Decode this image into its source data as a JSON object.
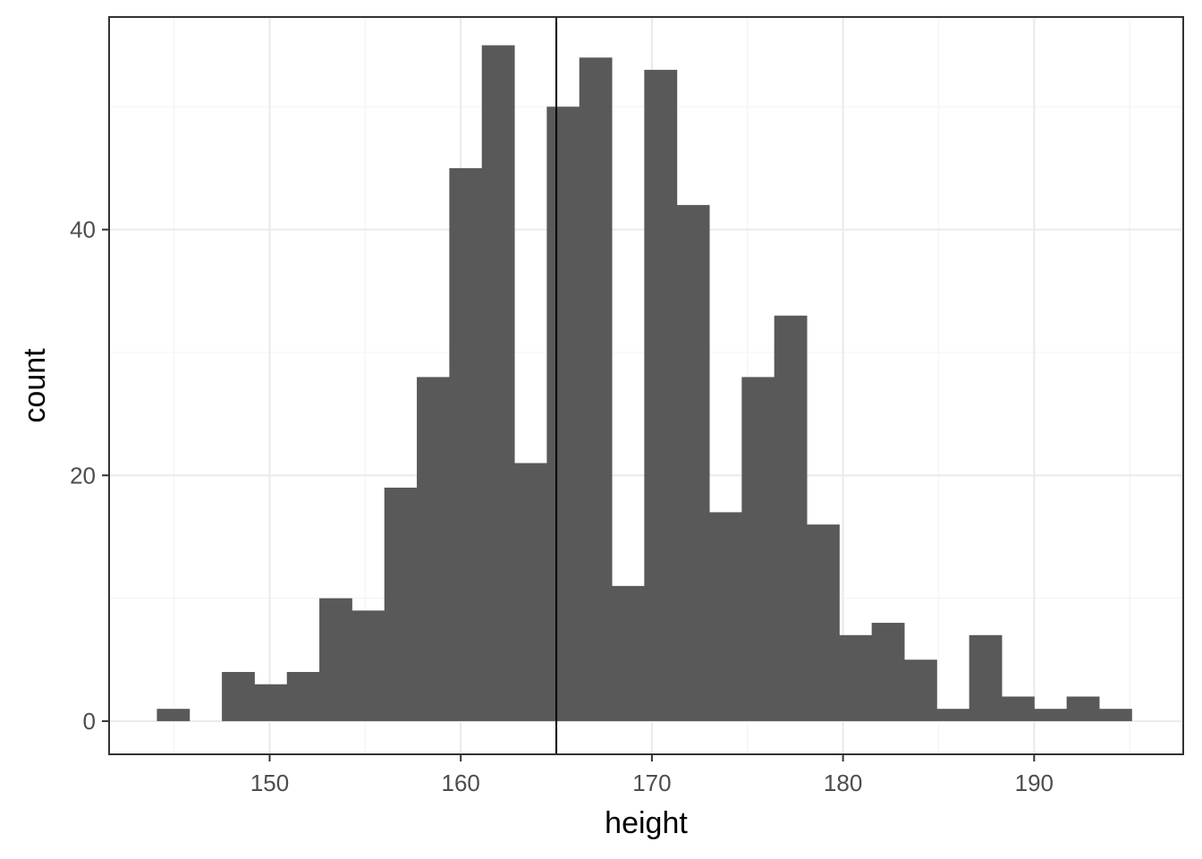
{
  "chart_data": {
    "type": "bar",
    "subtype": "histogram",
    "xlabel": "height",
    "ylabel": "count",
    "xlim": [
      141.6,
      197.8
    ],
    "ylim": [
      -2.7,
      57.3
    ],
    "x_ticks": [
      150,
      160,
      170,
      180,
      190
    ],
    "y_ticks": [
      0,
      20,
      40
    ],
    "grid": true,
    "bin_width": 1.7,
    "bins": [
      {
        "start": 144.1,
        "end": 145.8,
        "count": 1
      },
      {
        "start": 145.8,
        "end": 147.5,
        "count": 0
      },
      {
        "start": 147.5,
        "end": 149.2,
        "count": 4
      },
      {
        "start": 149.2,
        "end": 150.9,
        "count": 3
      },
      {
        "start": 150.9,
        "end": 152.6,
        "count": 4
      },
      {
        "start": 152.6,
        "end": 154.3,
        "count": 10
      },
      {
        "start": 154.3,
        "end": 156.0,
        "count": 9
      },
      {
        "start": 156.0,
        "end": 157.7,
        "count": 19
      },
      {
        "start": 157.7,
        "end": 159.4,
        "count": 28
      },
      {
        "start": 159.4,
        "end": 161.1,
        "count": 45
      },
      {
        "start": 161.1,
        "end": 162.8,
        "count": 55
      },
      {
        "start": 162.8,
        "end": 164.5,
        "count": 21
      },
      {
        "start": 164.5,
        "end": 166.2,
        "count": 50
      },
      {
        "start": 166.2,
        "end": 167.9,
        "count": 54
      },
      {
        "start": 167.9,
        "end": 169.6,
        "count": 11
      },
      {
        "start": 169.6,
        "end": 171.3,
        "count": 53
      },
      {
        "start": 171.3,
        "end": 173.0,
        "count": 42
      },
      {
        "start": 173.0,
        "end": 174.7,
        "count": 17
      },
      {
        "start": 174.7,
        "end": 176.4,
        "count": 28
      },
      {
        "start": 176.4,
        "end": 178.1,
        "count": 33
      },
      {
        "start": 178.1,
        "end": 179.8,
        "count": 16
      },
      {
        "start": 179.8,
        "end": 181.5,
        "count": 7
      },
      {
        "start": 181.5,
        "end": 183.2,
        "count": 8
      },
      {
        "start": 183.2,
        "end": 184.9,
        "count": 5
      },
      {
        "start": 184.9,
        "end": 186.6,
        "count": 1
      },
      {
        "start": 186.6,
        "end": 188.3,
        "count": 7
      },
      {
        "start": 188.3,
        "end": 190.0,
        "count": 2
      },
      {
        "start": 190.0,
        "end": 191.7,
        "count": 1
      },
      {
        "start": 191.7,
        "end": 193.4,
        "count": 2
      },
      {
        "start": 193.4,
        "end": 195.1,
        "count": 1
      }
    ],
    "vline": {
      "x": 165.0
    },
    "colors": {
      "bar": "#595959",
      "vline": "#000000",
      "grid_major": "#ebebeb",
      "grid_minor": "#f4f4f4",
      "panel_border": "#333333"
    }
  }
}
